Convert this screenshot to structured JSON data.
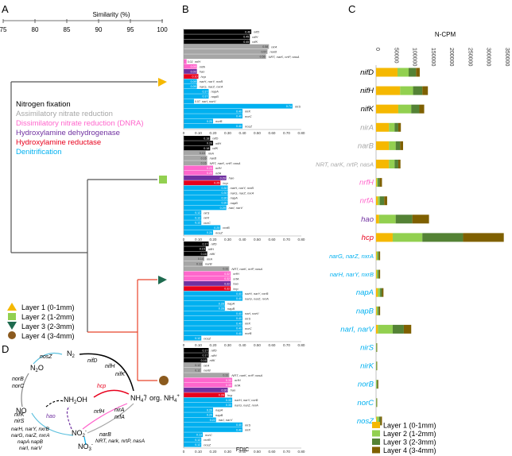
{
  "panel_labels": [
    "A",
    "B",
    "C",
    "D"
  ],
  "colors": {
    "nitrogen_fixation": "#000000",
    "assimilatory": "#a6a6a6",
    "dnra": "#ff66cc",
    "hydroxylamine_dehydrogenase": "#7030a0",
    "hydroxylamine_reductase": "#e8001c",
    "denitrification": "#00b0f0",
    "layer1": "#f5b800",
    "layer2": "#92d050",
    "layer3": "#548235",
    "layer4": "#7f6000",
    "dendro_red": "#e8442a",
    "dendro_gray": "#555555"
  },
  "panel_a": {
    "axis_title": "Similarity (%)",
    "ticks": [
      "75",
      "80",
      "85",
      "90",
      "95",
      "100"
    ],
    "legend_functions": [
      {
        "label": "Nitrogen fixation",
        "color": "#000000"
      },
      {
        "label": "Assimilatory nitrate reduction",
        "color": "#a6a6a6"
      },
      {
        "label": "Dissimilatory nitrate reduction (DNRA)",
        "color": "#ff66cc"
      },
      {
        "label": "Hydroxylamine dehydrogenase",
        "color": "#7030a0"
      },
      {
        "label": "Hydroxylamine reductase",
        "color": "#e8001c"
      },
      {
        "label": "Denitrification",
        "color": "#00b0f0"
      }
    ],
    "legend_layers": [
      {
        "label": "Layer 1 (0-1mm)",
        "marker": "triangle-up",
        "color": "#f5b800"
      },
      {
        "label": "Layer 2 (1-2mm)",
        "marker": "square",
        "color": "#92d050"
      },
      {
        "label": "Layer 3 (2-3mm)",
        "marker": "triangle-down",
        "color": "#1e6b4f"
      },
      {
        "label": "Layer 4 (3-4mm)",
        "marker": "circle",
        "color": "#8b5a1e"
      }
    ]
  },
  "chart_data": [
    {
      "type": "bar",
      "panel": "B",
      "xlabel": "FDIC",
      "xlim": [
        0,
        0.8
      ],
      "ticks": [
        "0",
        "0.10",
        "0.20",
        "0.30",
        "0.40",
        "0.50",
        "0.60",
        "0.70",
        "0.80"
      ],
      "facets": [
        {
          "layer": "Layer 1 (0-1mm)",
          "bars": [
            {
              "gene": "nifD",
              "value": 0.46,
              "cat": "fix"
            },
            {
              "gene": "nifH",
              "value": 0.45,
              "cat": "fix"
            },
            {
              "gene": "nifK",
              "value": 0.45,
              "cat": "fix"
            },
            {
              "gene": "nirA",
              "value": 0.58,
              "cat": "assim"
            },
            {
              "gene": "narB",
              "value": 0.57,
              "cat": "assim"
            },
            {
              "gene": "NRT, narK, nrtP, nasA",
              "value": 0.56,
              "cat": "assim"
            },
            {
              "gene": "nrfH",
              "value": 0.02,
              "cat": "dnra"
            },
            {
              "gene": "nrfA",
              "value": 0.09,
              "cat": "dnra"
            },
            {
              "gene": "hao",
              "value": 0.09,
              "cat": "hao"
            },
            {
              "gene": "hcp",
              "value": 0.1,
              "cat": "hcp"
            },
            {
              "gene": "narH, narY, nxrB",
              "value": 0.09,
              "cat": "denit"
            },
            {
              "gene": "narG, narZ, nxrA",
              "value": 0.09,
              "cat": "denit"
            },
            {
              "gene": "napA",
              "value": 0.17,
              "cat": "denit"
            },
            {
              "gene": "napB",
              "value": 0.17,
              "cat": "denit"
            },
            {
              "gene": "narI, narV",
              "value": 0.07,
              "cat": "denit"
            },
            {
              "gene": "nirS",
              "value": 0.74,
              "cat": "denit"
            },
            {
              "gene": "nirK",
              "value": 0.4,
              "cat": "denit"
            },
            {
              "gene": "norC",
              "value": 0.4,
              "cat": "denit"
            },
            {
              "gene": "norB",
              "value": 0.2,
              "cat": "denit"
            },
            {
              "gene": "nosZ",
              "value": 0.4,
              "cat": "denit"
            }
          ]
        },
        {
          "layer": "Layer 2 (1-2mm)",
          "bars": [
            {
              "gene": "nifD",
              "value": 0.18,
              "cat": "fix"
            },
            {
              "gene": "nifH",
              "value": 0.2,
              "cat": "fix"
            },
            {
              "gene": "nifK",
              "value": 0.18,
              "cat": "fix"
            },
            {
              "gene": "nirA",
              "value": 0.15,
              "cat": "assim"
            },
            {
              "gene": "narB",
              "value": 0.16,
              "cat": "assim"
            },
            {
              "gene": "NRT, narK, nrtP, nasA",
              "value": 0.16,
              "cat": "assim"
            },
            {
              "gene": "nrfH",
              "value": 0.2,
              "cat": "dnra"
            },
            {
              "gene": "nrfA",
              "value": 0.2,
              "cat": "dnra"
            },
            {
              "gene": "hao",
              "value": 0.29,
              "cat": "hao"
            },
            {
              "gene": "hcp",
              "value": 0.25,
              "cat": "hcp"
            },
            {
              "gene": "narH, narY, nxrB",
              "value": 0.3,
              "cat": "denit"
            },
            {
              "gene": "narG, narZ, nxrA",
              "value": 0.3,
              "cat": "denit"
            },
            {
              "gene": "napA",
              "value": 0.3,
              "cat": "denit"
            },
            {
              "gene": "napB",
              "value": 0.3,
              "cat": "denit"
            },
            {
              "gene": "narI, narV",
              "value": 0.29,
              "cat": "denit"
            },
            {
              "gene": "nirS",
              "value": 0.12,
              "cat": "denit"
            },
            {
              "gene": "nirK",
              "value": 0.12,
              "cat": "denit"
            },
            {
              "gene": "norC",
              "value": 0.12,
              "cat": "denit"
            },
            {
              "gene": "norB",
              "value": 0.25,
              "cat": "denit"
            },
            {
              "gene": "nosZ",
              "value": 0.2,
              "cat": "denit"
            }
          ]
        },
        {
          "layer": "Layer 3 (2-3mm)",
          "bars": [
            {
              "gene": "nifD",
              "value": 0.17,
              "cat": "fix"
            },
            {
              "gene": "nifH",
              "value": 0.15,
              "cat": "fix"
            },
            {
              "gene": "nifK",
              "value": 0.16,
              "cat": "fix"
            },
            {
              "gene": "nirA",
              "value": 0.14,
              "cat": "assim"
            },
            {
              "gene": "narB",
              "value": 0.13,
              "cat": "assim"
            },
            {
              "gene": "NRT, narK, nrtP, nasA",
              "value": 0.31,
              "cat": "assim"
            },
            {
              "gene": "nrfH",
              "value": 0.32,
              "cat": "dnra"
            },
            {
              "gene": "nrfA",
              "value": 0.32,
              "cat": "dnra"
            },
            {
              "gene": "hao",
              "value": 0.32,
              "cat": "hao"
            },
            {
              "gene": "hcp",
              "value": 0.32,
              "cat": "hcp"
            },
            {
              "gene": "narH, narY, nxrB",
              "value": 0.4,
              "cat": "denit"
            },
            {
              "gene": "narG, narZ, nxrA",
              "value": 0.4,
              "cat": "denit"
            },
            {
              "gene": "napA",
              "value": 0.28,
              "cat": "denit"
            },
            {
              "gene": "napB",
              "value": 0.28,
              "cat": "denit"
            },
            {
              "gene": "narI, narV",
              "value": 0.4,
              "cat": "denit"
            },
            {
              "gene": "nirS",
              "value": 0.4,
              "cat": "denit"
            },
            {
              "gene": "nirK",
              "value": 0.4,
              "cat": "denit"
            },
            {
              "gene": "norC",
              "value": 0.4,
              "cat": "denit"
            },
            {
              "gene": "norB",
              "value": 0.4,
              "cat": "denit"
            },
            {
              "gene": "nosZ",
              "value": 0.12,
              "cat": "denit"
            }
          ]
        },
        {
          "layer": "Layer 4 (3-4mm)",
          "bars": [
            {
              "gene": "nifD",
              "value": 0.17,
              "cat": "fix"
            },
            {
              "gene": "nifH",
              "value": 0.17,
              "cat": "fix"
            },
            {
              "gene": "nifK",
              "value": 0.16,
              "cat": "fix"
            },
            {
              "gene": "nirA",
              "value": 0.12,
              "cat": "assim"
            },
            {
              "gene": "narB",
              "value": 0.12,
              "cat": "assim"
            },
            {
              "gene": "NRT, narK, nrtP, nasA",
              "value": 0.31,
              "cat": "assim"
            },
            {
              "gene": "nrfH",
              "value": 0.33,
              "cat": "dnra"
            },
            {
              "gene": "nrfA",
              "value": 0.33,
              "cat": "dnra"
            },
            {
              "gene": "hao",
              "value": 0.3,
              "cat": "hao"
            },
            {
              "gene": "hcp",
              "value": 0.28,
              "cat": "hcp"
            },
            {
              "gene": "narH, narY, nxrB",
              "value": 0.33,
              "cat": "denit"
            },
            {
              "gene": "narG, narZ, nxrA",
              "value": 0.33,
              "cat": "denit"
            },
            {
              "gene": "napA",
              "value": 0.2,
              "cat": "denit"
            },
            {
              "gene": "napB",
              "value": 0.2,
              "cat": "denit"
            },
            {
              "gene": "narI, narV",
              "value": 0.22,
              "cat": "denit"
            },
            {
              "gene": "nirS",
              "value": 0.4,
              "cat": "denit"
            },
            {
              "gene": "nirK",
              "value": 0.4,
              "cat": "denit"
            },
            {
              "gene": "norC",
              "value": 0.13,
              "cat": "denit"
            },
            {
              "gene": "norB",
              "value": 0.12,
              "cat": "denit"
            },
            {
              "gene": "nosZ",
              "value": 0.12,
              "cat": "denit"
            }
          ]
        }
      ]
    },
    {
      "type": "bar",
      "panel": "C",
      "orientation": "horizontal-stacked",
      "title": "N-CPM",
      "xlim": [
        0,
        350000
      ],
      "ticks": [
        "0",
        "50000",
        "100000",
        "150000",
        "200000",
        "250000",
        "300000",
        "350000"
      ],
      "series": [
        {
          "name": "Layer 1 (0-1mm)",
          "color": "#f5b800"
        },
        {
          "name": "Layer 2 (1-2mm)",
          "color": "#92d050"
        },
        {
          "name": "Layer 3 (2-3mm)",
          "color": "#548235"
        },
        {
          "name": "Layer 4 (3-4mm)",
          "color": "#7f6000"
        }
      ],
      "rows": [
        {
          "gene": "nifD",
          "cat": "fix",
          "values": [
            58000,
            30000,
            20000,
            10000
          ]
        },
        {
          "gene": "nifH",
          "cat": "fix",
          "values": [
            65000,
            35000,
            25000,
            15000
          ]
        },
        {
          "gene": "nifK",
          "cat": "fix",
          "values": [
            60000,
            35000,
            22000,
            13000
          ]
        },
        {
          "gene": "nirA",
          "cat": "assim",
          "values": [
            35000,
            15000,
            10000,
            7000
          ]
        },
        {
          "gene": "narB",
          "cat": "assim",
          "values": [
            35000,
            18000,
            12000,
            8000
          ]
        },
        {
          "gene": "NRT, narK, nrtP, nasA",
          "cat": "assim",
          "values": [
            35000,
            15000,
            10000,
            6000
          ]
        },
        {
          "gene": "nrfH",
          "cat": "dnra",
          "values": [
            2000,
            3000,
            5000,
            6000
          ]
        },
        {
          "gene": "nrfA",
          "cat": "dnra",
          "values": [
            5000,
            5000,
            12000,
            8000
          ]
        },
        {
          "gene": "hao",
          "cat": "hao",
          "values": [
            8000,
            45000,
            45000,
            45000
          ]
        },
        {
          "gene": "hcp",
          "cat": "hcp",
          "values": [
            45000,
            80000,
            110000,
            110000
          ]
        },
        {
          "gene": "narG, narZ, nxrA",
          "cat": "denit",
          "values": [
            2000,
            3000,
            3000,
            3000
          ]
        },
        {
          "gene": "narH, narY, nxrB",
          "cat": "denit",
          "values": [
            2000,
            3000,
            3000,
            3000
          ]
        },
        {
          "gene": "napA",
          "cat": "denit",
          "values": [
            5000,
            6000,
            5000,
            4000
          ]
        },
        {
          "gene": "napB",
          "cat": "denit",
          "values": [
            2000,
            3000,
            3000,
            3000
          ]
        },
        {
          "gene": "narI, narV",
          "cat": "denit",
          "values": [
            5000,
            40000,
            30000,
            20000
          ]
        },
        {
          "gene": "nirS",
          "cat": "denit",
          "values": [
            0,
            1000,
            1000,
            1000
          ]
        },
        {
          "gene": "nirK",
          "cat": "denit",
          "values": [
            0,
            1000,
            1000,
            1000
          ]
        },
        {
          "gene": "norB",
          "cat": "denit",
          "values": [
            0,
            2000,
            2000,
            2000
          ]
        },
        {
          "gene": "norC",
          "cat": "denit",
          "values": [
            0,
            1000,
            1000,
            1000
          ]
        },
        {
          "gene": "nosZ",
          "cat": "denit",
          "values": [
            2000,
            6000,
            4000,
            4000
          ]
        }
      ],
      "legend": [
        "Layer 1 (0-1mm)",
        "Layer 2 (1-2mm)",
        "Layer 3 (2-3mm)",
        "Layer 4 (3-4mm)"
      ]
    }
  ],
  "panel_d": {
    "nodes": [
      "N2",
      "N2O",
      "NO",
      "NH2OH",
      "NH4+",
      "org. NH4+",
      "NO2-",
      "NO3-"
    ],
    "node_text": {
      "n2": "N",
      "n2o": "N",
      "o": "O",
      "no": "NO",
      "nh2oh": "NH",
      "oh": "OH",
      "nh4": "NH",
      "org": "org. NH",
      "no2": "NO",
      "no3": "NO",
      "sub2": "2",
      "sub3": "3",
      "sub4": "4",
      "plus": "+",
      "minus": "-",
      "slash": "/"
    },
    "gene_labels": {
      "nosZ": "nosZ",
      "nifD": "nifD",
      "nifH": "nifH",
      "nifK": "nifK",
      "norB": "norB",
      "norC": "norC",
      "hcp": "hcp",
      "nirA": "nirA",
      "nrfH": "nrfH",
      "nrfA": "nrfA",
      "nirK": "nirK",
      "nirS": "nirS",
      "hao": "hao",
      "narB": "narB",
      "NRT": "NRT, nark, nrtP, nasA",
      "narHgroup": "narH, narY, nxrB",
      "narGgroup": "narG, narZ, nxrA",
      "napgroup": "napA napB",
      "narIgroup": "narI, narV"
    }
  }
}
